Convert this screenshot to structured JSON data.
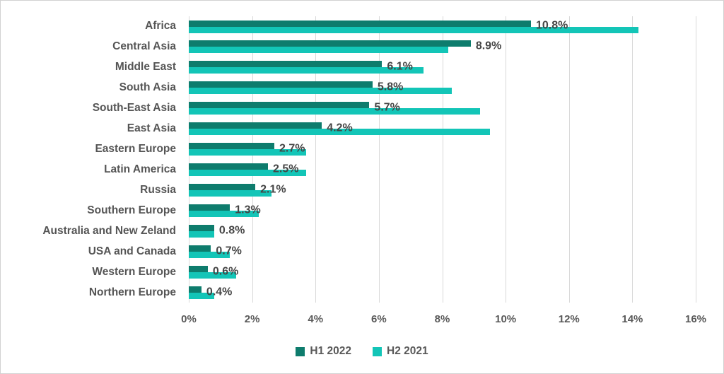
{
  "chart_data": {
    "type": "bar",
    "orientation": "horizontal",
    "title": "",
    "xlabel": "",
    "ylabel": "",
    "xlim": [
      0,
      16
    ],
    "x_ticks": [
      "0%",
      "2%",
      "4%",
      "6%",
      "8%",
      "10%",
      "12%",
      "14%",
      "16%"
    ],
    "grid": true,
    "legend_position": "bottom",
    "categories": [
      "Africa",
      "Central Asia",
      "Middle East",
      "South Asia",
      "South-East Asia",
      "East Asia",
      "Eastern Europe",
      "Latin America",
      "Russia",
      "Southern Europe",
      "Australia and New Zeland",
      "USA and Canada",
      "Western Europe",
      "Northern Europe"
    ],
    "series": [
      {
        "name": "H1 2022",
        "color": "#0e7c6d",
        "values": [
          10.8,
          8.9,
          6.1,
          5.8,
          5.7,
          4.2,
          2.7,
          2.5,
          2.1,
          1.3,
          0.8,
          0.7,
          0.6,
          0.4
        ],
        "data_labels": [
          "10.8%",
          "8.9%",
          "6.1%",
          "5.8%",
          "5.7%",
          "4.2%",
          "2.7%",
          "2.5%",
          "2.1%",
          "1.3%",
          "0.8%",
          "0.7%",
          "0.6%",
          "0.4%"
        ]
      },
      {
        "name": "H2 2021",
        "color": "#13c5b7",
        "values": [
          14.2,
          8.2,
          7.4,
          8.3,
          9.2,
          9.5,
          3.7,
          3.7,
          2.6,
          2.2,
          0.8,
          1.3,
          1.5,
          0.8
        ],
        "data_labels": []
      }
    ]
  }
}
